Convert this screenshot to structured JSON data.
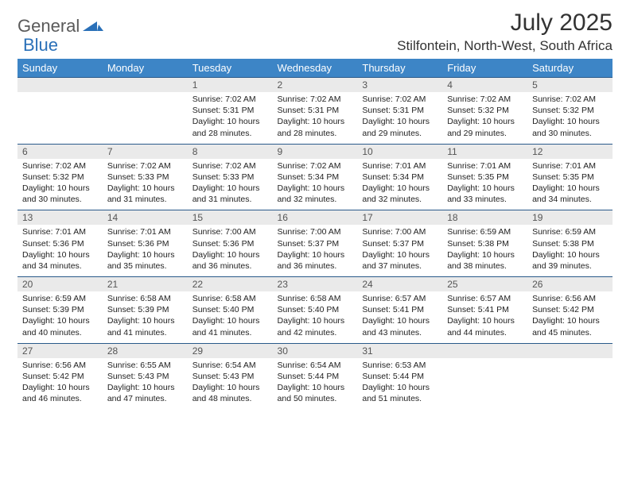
{
  "brand": {
    "general": "General",
    "blue": "Blue"
  },
  "title": "July 2025",
  "location": "Stilfontein, North-West, South Africa",
  "colors": {
    "header_bg": "#3d85c6",
    "header_text": "#ffffff",
    "daynum_bg": "#eaeaea",
    "daynum_text": "#555555",
    "body_text": "#222222",
    "rule": "#2a5a8a",
    "logo_gray": "#5a5a5a",
    "logo_blue": "#2a70b8"
  },
  "day_headers": [
    "Sunday",
    "Monday",
    "Tuesday",
    "Wednesday",
    "Thursday",
    "Friday",
    "Saturday"
  ],
  "weeks": [
    [
      null,
      null,
      {
        "n": "1",
        "sr": "7:02 AM",
        "ss": "5:31 PM",
        "dl": "10 hours and 28 minutes."
      },
      {
        "n": "2",
        "sr": "7:02 AM",
        "ss": "5:31 PM",
        "dl": "10 hours and 28 minutes."
      },
      {
        "n": "3",
        "sr": "7:02 AM",
        "ss": "5:31 PM",
        "dl": "10 hours and 29 minutes."
      },
      {
        "n": "4",
        "sr": "7:02 AM",
        "ss": "5:32 PM",
        "dl": "10 hours and 29 minutes."
      },
      {
        "n": "5",
        "sr": "7:02 AM",
        "ss": "5:32 PM",
        "dl": "10 hours and 30 minutes."
      }
    ],
    [
      {
        "n": "6",
        "sr": "7:02 AM",
        "ss": "5:32 PM",
        "dl": "10 hours and 30 minutes."
      },
      {
        "n": "7",
        "sr": "7:02 AM",
        "ss": "5:33 PM",
        "dl": "10 hours and 31 minutes."
      },
      {
        "n": "8",
        "sr": "7:02 AM",
        "ss": "5:33 PM",
        "dl": "10 hours and 31 minutes."
      },
      {
        "n": "9",
        "sr": "7:02 AM",
        "ss": "5:34 PM",
        "dl": "10 hours and 32 minutes."
      },
      {
        "n": "10",
        "sr": "7:01 AM",
        "ss": "5:34 PM",
        "dl": "10 hours and 32 minutes."
      },
      {
        "n": "11",
        "sr": "7:01 AM",
        "ss": "5:35 PM",
        "dl": "10 hours and 33 minutes."
      },
      {
        "n": "12",
        "sr": "7:01 AM",
        "ss": "5:35 PM",
        "dl": "10 hours and 34 minutes."
      }
    ],
    [
      {
        "n": "13",
        "sr": "7:01 AM",
        "ss": "5:36 PM",
        "dl": "10 hours and 34 minutes."
      },
      {
        "n": "14",
        "sr": "7:01 AM",
        "ss": "5:36 PM",
        "dl": "10 hours and 35 minutes."
      },
      {
        "n": "15",
        "sr": "7:00 AM",
        "ss": "5:36 PM",
        "dl": "10 hours and 36 minutes."
      },
      {
        "n": "16",
        "sr": "7:00 AM",
        "ss": "5:37 PM",
        "dl": "10 hours and 36 minutes."
      },
      {
        "n": "17",
        "sr": "7:00 AM",
        "ss": "5:37 PM",
        "dl": "10 hours and 37 minutes."
      },
      {
        "n": "18",
        "sr": "6:59 AM",
        "ss": "5:38 PM",
        "dl": "10 hours and 38 minutes."
      },
      {
        "n": "19",
        "sr": "6:59 AM",
        "ss": "5:38 PM",
        "dl": "10 hours and 39 minutes."
      }
    ],
    [
      {
        "n": "20",
        "sr": "6:59 AM",
        "ss": "5:39 PM",
        "dl": "10 hours and 40 minutes."
      },
      {
        "n": "21",
        "sr": "6:58 AM",
        "ss": "5:39 PM",
        "dl": "10 hours and 41 minutes."
      },
      {
        "n": "22",
        "sr": "6:58 AM",
        "ss": "5:40 PM",
        "dl": "10 hours and 41 minutes."
      },
      {
        "n": "23",
        "sr": "6:58 AM",
        "ss": "5:40 PM",
        "dl": "10 hours and 42 minutes."
      },
      {
        "n": "24",
        "sr": "6:57 AM",
        "ss": "5:41 PM",
        "dl": "10 hours and 43 minutes."
      },
      {
        "n": "25",
        "sr": "6:57 AM",
        "ss": "5:41 PM",
        "dl": "10 hours and 44 minutes."
      },
      {
        "n": "26",
        "sr": "6:56 AM",
        "ss": "5:42 PM",
        "dl": "10 hours and 45 minutes."
      }
    ],
    [
      {
        "n": "27",
        "sr": "6:56 AM",
        "ss": "5:42 PM",
        "dl": "10 hours and 46 minutes."
      },
      {
        "n": "28",
        "sr": "6:55 AM",
        "ss": "5:43 PM",
        "dl": "10 hours and 47 minutes."
      },
      {
        "n": "29",
        "sr": "6:54 AM",
        "ss": "5:43 PM",
        "dl": "10 hours and 48 minutes."
      },
      {
        "n": "30",
        "sr": "6:54 AM",
        "ss": "5:44 PM",
        "dl": "10 hours and 50 minutes."
      },
      {
        "n": "31",
        "sr": "6:53 AM",
        "ss": "5:44 PM",
        "dl": "10 hours and 51 minutes."
      },
      null,
      null
    ]
  ],
  "labels": {
    "sunrise": "Sunrise: ",
    "sunset": "Sunset: ",
    "daylight": "Daylight: "
  }
}
